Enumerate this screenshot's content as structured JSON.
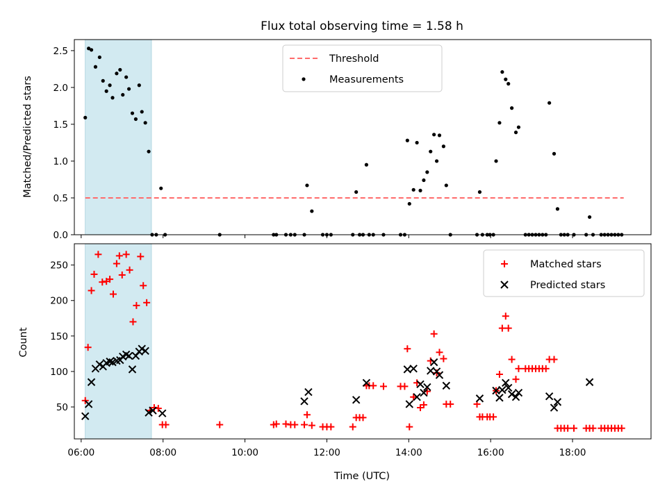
{
  "title": "Flux total observing time = 1.58 h",
  "chart_data": [
    {
      "type": "scatter",
      "ylabel": "Matched/Predicted stars",
      "xlim": [
        "05:50",
        "19:55"
      ],
      "ylim": [
        0,
        2.65
      ],
      "yticks": [
        "0.0",
        "0.5",
        "1.0",
        "1.5",
        "2.0",
        "2.5"
      ],
      "shaded_region": {
        "start": "06:06",
        "end": "07:43",
        "color": "#add8e6"
      },
      "threshold": {
        "name": "Threshold",
        "value": 0.5,
        "x_start": "06:06",
        "x_end": "19:15",
        "color": "#ff6b6b",
        "style": "dashed"
      },
      "legend": {
        "placement": "top-center",
        "entries": [
          "Threshold",
          "Measurements"
        ]
      },
      "series": [
        {
          "name": "Measurements",
          "color": "#000000",
          "marker": "dot",
          "points": [
            [
              "06:06",
              1.59
            ],
            [
              "06:11",
              2.53
            ],
            [
              "06:15",
              2.51
            ],
            [
              "06:21",
              2.28
            ],
            [
              "06:27",
              2.41
            ],
            [
              "06:32",
              2.09
            ],
            [
              "06:37",
              1.95
            ],
            [
              "06:42",
              2.03
            ],
            [
              "06:46",
              1.86
            ],
            [
              "06:52",
              2.19
            ],
            [
              "06:57",
              2.24
            ],
            [
              "07:01",
              1.9
            ],
            [
              "07:06",
              2.14
            ],
            [
              "07:10",
              1.98
            ],
            [
              "07:15",
              1.65
            ],
            [
              "07:20",
              1.57
            ],
            [
              "07:25",
              2.03
            ],
            [
              "07:29",
              1.67
            ],
            [
              "07:34",
              1.52
            ],
            [
              "07:39",
              1.13
            ],
            [
              "07:44",
              0.0
            ],
            [
              "07:50",
              0.0
            ],
            [
              "07:57",
              0.63
            ],
            [
              "08:03",
              0.0
            ],
            [
              "09:23",
              0.0
            ],
            [
              "10:42",
              0.0
            ],
            [
              "10:46",
              0.0
            ],
            [
              "11:00",
              0.0
            ],
            [
              "11:07",
              0.0
            ],
            [
              "11:13",
              0.0
            ],
            [
              "11:27",
              0.0
            ],
            [
              "11:31",
              0.67
            ],
            [
              "11:38",
              0.32
            ],
            [
              "11:54",
              0.0
            ],
            [
              "12:00",
              0.0
            ],
            [
              "12:06",
              0.0
            ],
            [
              "12:38",
              0.0
            ],
            [
              "12:43",
              0.58
            ],
            [
              "12:48",
              0.0
            ],
            [
              "12:53",
              0.0
            ],
            [
              "12:58",
              0.95
            ],
            [
              "13:02",
              0.0
            ],
            [
              "13:08",
              0.0
            ],
            [
              "13:23",
              0.0
            ],
            [
              "13:48",
              0.0
            ],
            [
              "13:54",
              0.0
            ],
            [
              "13:58",
              1.28
            ],
            [
              "14:01",
              0.42
            ],
            [
              "14:07",
              0.61
            ],
            [
              "14:12",
              1.25
            ],
            [
              "14:17",
              0.6
            ],
            [
              "14:22",
              0.74
            ],
            [
              "14:27",
              0.85
            ],
            [
              "14:32",
              1.13
            ],
            [
              "14:37",
              1.36
            ],
            [
              "14:41",
              1.0
            ],
            [
              "14:45",
              1.35
            ],
            [
              "14:51",
              1.2
            ],
            [
              "14:55",
              0.67
            ],
            [
              "15:01",
              0.0
            ],
            [
              "15:40",
              0.0
            ],
            [
              "15:44",
              0.58
            ],
            [
              "15:48",
              0.0
            ],
            [
              "15:55",
              0.0
            ],
            [
              "15:59",
              0.0
            ],
            [
              "16:04",
              0.0
            ],
            [
              "16:08",
              1.0
            ],
            [
              "16:13",
              1.52
            ],
            [
              "16:17",
              2.21
            ],
            [
              "16:22",
              2.11
            ],
            [
              "16:26",
              2.05
            ],
            [
              "16:31",
              1.72
            ],
            [
              "16:37",
              1.39
            ],
            [
              "16:41",
              1.46
            ],
            [
              "16:51",
              0.0
            ],
            [
              "16:56",
              0.0
            ],
            [
              "17:01",
              0.0
            ],
            [
              "17:06",
              0.0
            ],
            [
              "17:11",
              0.0
            ],
            [
              "17:16",
              0.0
            ],
            [
              "17:21",
              0.0
            ],
            [
              "17:26",
              1.79
            ],
            [
              "17:33",
              1.1
            ],
            [
              "17:38",
              0.35
            ],
            [
              "17:43",
              0.0
            ],
            [
              "17:48",
              0.0
            ],
            [
              "17:53",
              0.0
            ],
            [
              "18:02",
              0.0
            ],
            [
              "18:20",
              0.0
            ],
            [
              "18:25",
              0.24
            ],
            [
              "18:30",
              0.0
            ],
            [
              "18:42",
              0.0
            ],
            [
              "18:47",
              0.0
            ],
            [
              "18:52",
              0.0
            ],
            [
              "18:57",
              0.0
            ],
            [
              "19:02",
              0.0
            ],
            [
              "19:07",
              0.0
            ],
            [
              "19:12",
              0.0
            ]
          ]
        }
      ]
    },
    {
      "type": "scatter",
      "xlabel": "Time (UTC)",
      "ylabel": "Count",
      "xlim": [
        "05:50",
        "19:55"
      ],
      "ylim": [
        5,
        280
      ],
      "xticks": [
        "06:00",
        "08:00",
        "10:00",
        "12:00",
        "14:00",
        "16:00",
        "18:00"
      ],
      "yticks": [
        "50",
        "100",
        "150",
        "200",
        "250"
      ],
      "shaded_region": {
        "start": "06:06",
        "end": "07:43",
        "color": "#add8e6"
      },
      "legend": {
        "placement": "top-right",
        "entries": [
          "Matched stars",
          "Predicted stars"
        ]
      },
      "series": [
        {
          "name": "Matched stars",
          "color": "#ff0000",
          "marker": "plus",
          "points": [
            [
              "06:06",
              59
            ],
            [
              "06:10",
              134
            ],
            [
              "06:15",
              214
            ],
            [
              "06:19",
              237
            ],
            [
              "06:25",
              265
            ],
            [
              "06:31",
              226
            ],
            [
              "06:37",
              227
            ],
            [
              "06:42",
              230
            ],
            [
              "06:47",
              209
            ],
            [
              "06:52",
              252
            ],
            [
              "06:56",
              263
            ],
            [
              "07:00",
              236
            ],
            [
              "07:06",
              265
            ],
            [
              "07:11",
              243
            ],
            [
              "07:16",
              170
            ],
            [
              "07:21",
              193
            ],
            [
              "07:27",
              262
            ],
            [
              "07:31",
              221
            ],
            [
              "07:36",
              197
            ],
            [
              "07:41",
              45
            ],
            [
              "07:47",
              49
            ],
            [
              "07:53",
              48
            ],
            [
              "07:59",
              25
            ],
            [
              "08:04",
              25
            ],
            [
              "09:23",
              25
            ],
            [
              "10:42",
              25
            ],
            [
              "10:46",
              26
            ],
            [
              "11:00",
              26
            ],
            [
              "11:07",
              25
            ],
            [
              "11:13",
              25
            ],
            [
              "11:27",
              25
            ],
            [
              "11:31",
              39
            ],
            [
              "11:38",
              24
            ],
            [
              "11:54",
              22
            ],
            [
              "12:00",
              22
            ],
            [
              "12:06",
              22
            ],
            [
              "12:38",
              22
            ],
            [
              "12:43",
              35
            ],
            [
              "12:48",
              35
            ],
            [
              "12:53",
              35
            ],
            [
              "12:58",
              80
            ],
            [
              "13:02",
              80
            ],
            [
              "13:08",
              80
            ],
            [
              "13:23",
              79
            ],
            [
              "13:48",
              79
            ],
            [
              "13:54",
              79
            ],
            [
              "13:58",
              132
            ],
            [
              "14:01",
              22
            ],
            [
              "14:07",
              64
            ],
            [
              "14:12",
              84
            ],
            [
              "14:17",
              49
            ],
            [
              "14:22",
              53
            ],
            [
              "14:27",
              72
            ],
            [
              "14:32",
              115
            ],
            [
              "14:37",
              153
            ],
            [
              "14:41",
              98
            ],
            [
              "14:45",
              127
            ],
            [
              "14:51",
              118
            ],
            [
              "14:55",
              54
            ],
            [
              "15:01",
              54
            ],
            [
              "15:40",
              54
            ],
            [
              "15:44",
              36
            ],
            [
              "15:48",
              36
            ],
            [
              "15:55",
              36
            ],
            [
              "15:59",
              36
            ],
            [
              "16:04",
              36
            ],
            [
              "16:08",
              73
            ],
            [
              "16:13",
              96
            ],
            [
              "16:17",
              161
            ],
            [
              "16:22",
              178
            ],
            [
              "16:26",
              161
            ],
            [
              "16:31",
              117
            ],
            [
              "16:37",
              89
            ],
            [
              "16:41",
              104
            ],
            [
              "16:51",
              104
            ],
            [
              "16:56",
              104
            ],
            [
              "17:01",
              104
            ],
            [
              "17:06",
              104
            ],
            [
              "17:11",
              104
            ],
            [
              "17:16",
              104
            ],
            [
              "17:21",
              104
            ],
            [
              "17:26",
              117
            ],
            [
              "17:33",
              117
            ],
            [
              "17:38",
              20
            ],
            [
              "17:43",
              20
            ],
            [
              "17:48",
              20
            ],
            [
              "17:53",
              20
            ],
            [
              "18:02",
              20
            ],
            [
              "18:20",
              20
            ],
            [
              "18:25",
              20
            ],
            [
              "18:30",
              20
            ],
            [
              "18:42",
              20
            ],
            [
              "18:47",
              20
            ],
            [
              "18:52",
              20
            ],
            [
              "18:57",
              20
            ],
            [
              "19:02",
              20
            ],
            [
              "19:07",
              20
            ],
            [
              "19:12",
              20
            ]
          ]
        },
        {
          "name": "Predicted stars",
          "color": "#000000",
          "marker": "x",
          "points": [
            [
              "06:06",
              37
            ],
            [
              "06:11",
              54
            ],
            [
              "06:15",
              85
            ],
            [
              "06:21",
              104
            ],
            [
              "06:27",
              110
            ],
            [
              "06:32",
              107
            ],
            [
              "06:37",
              112
            ],
            [
              "06:42",
              114
            ],
            [
              "06:46",
              113
            ],
            [
              "06:52",
              115
            ],
            [
              "06:57",
              116
            ],
            [
              "07:01",
              121
            ],
            [
              "07:06",
              124
            ],
            [
              "07:10",
              122
            ],
            [
              "07:15",
              103
            ],
            [
              "07:20",
              122
            ],
            [
              "07:25",
              128
            ],
            [
              "07:29",
              132
            ],
            [
              "07:34",
              129
            ],
            [
              "07:39",
              42
            ],
            [
              "07:45",
              45
            ],
            [
              "07:59",
              41
            ],
            [
              "11:27",
              58
            ],
            [
              "11:33",
              71
            ],
            [
              "12:43",
              60
            ],
            [
              "12:58",
              84
            ],
            [
              "13:58",
              103
            ],
            [
              "14:01",
              54
            ],
            [
              "14:07",
              104
            ],
            [
              "14:12",
              64
            ],
            [
              "14:17",
              82
            ],
            [
              "14:22",
              70
            ],
            [
              "14:27",
              78
            ],
            [
              "14:32",
              101
            ],
            [
              "14:37",
              113
            ],
            [
              "14:41",
              100
            ],
            [
              "14:45",
              95
            ],
            [
              "14:55",
              80
            ],
            [
              "15:44",
              62
            ],
            [
              "16:08",
              73
            ],
            [
              "16:13",
              63
            ],
            [
              "16:17",
              74
            ],
            [
              "16:22",
              84
            ],
            [
              "16:26",
              77
            ],
            [
              "16:31",
              68
            ],
            [
              "16:37",
              64
            ],
            [
              "16:41",
              70
            ],
            [
              "17:26",
              65
            ],
            [
              "17:33",
              49
            ],
            [
              "17:38",
              57
            ],
            [
              "18:25",
              85
            ]
          ]
        }
      ]
    }
  ]
}
